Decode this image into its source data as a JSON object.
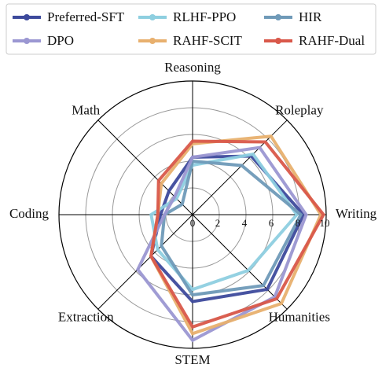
{
  "chart_data": {
    "type": "radar",
    "categories": [
      "Reasoning",
      "Roleplay",
      "Writing",
      "Humanities",
      "STEM",
      "Extraction",
      "Coding",
      "Math"
    ],
    "rlim": [
      0,
      10
    ],
    "rticks": [
      0,
      2,
      4,
      6,
      8,
      10
    ],
    "grid": true,
    "legend": "upper center",
    "series": [
      {
        "name": "Preferred-SFT",
        "color": "#3d4a9c",
        "values": [
          4.3,
          6.2,
          8.3,
          7.9,
          6.5,
          4.4,
          2.4,
          2.5
        ]
      },
      {
        "name": "RLHF-PPO",
        "color": "#8ecfe0",
        "values": [
          3.7,
          6.4,
          7.8,
          5.9,
          5.6,
          3.7,
          3.1,
          1.7
        ]
      },
      {
        "name": "HIR",
        "color": "#6f9ab8",
        "values": [
          4.0,
          5.2,
          8.1,
          7.5,
          6.0,
          3.3,
          2.1,
          1.1
        ]
      },
      {
        "name": "DPO",
        "color": "#9b97d2",
        "values": [
          4.3,
          7.1,
          8.5,
          8.7,
          9.4,
          5.8,
          2.1,
          1.9
        ]
      },
      {
        "name": "RAHF-SCIT",
        "color": "#e8b06e",
        "values": [
          5.3,
          8.3,
          9.6,
          9.4,
          8.9,
          4.4,
          2.6,
          3.3
        ]
      },
      {
        "name": "RAHF-Dual",
        "color": "#d9584a",
        "values": [
          5.5,
          7.7,
          9.8,
          8.9,
          8.4,
          4.4,
          2.6,
          3.6
        ]
      }
    ]
  }
}
